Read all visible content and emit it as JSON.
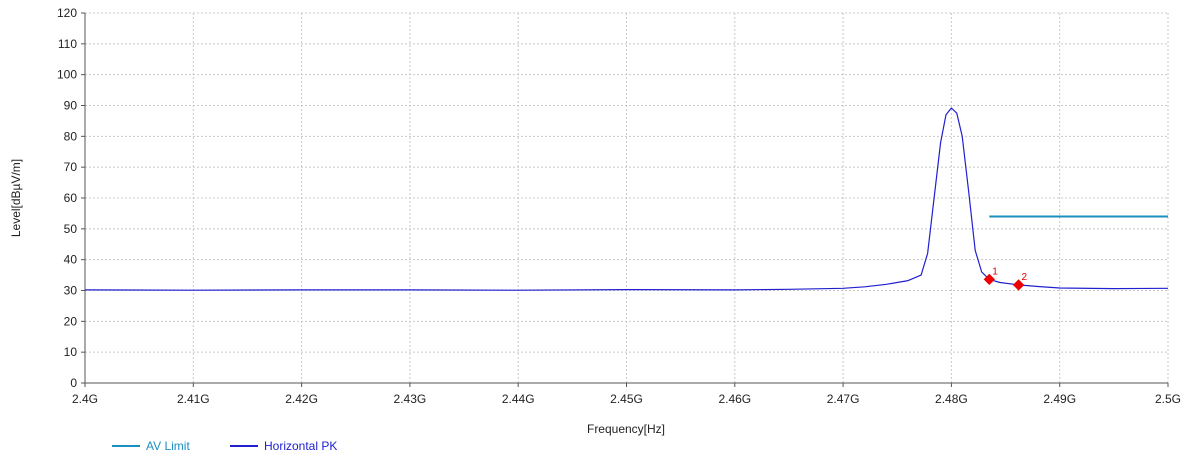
{
  "chart_data": {
    "type": "line",
    "xlabel": "Frequency[Hz]",
    "ylabel": "Level[dBµV/m]",
    "xlim": [
      2.4,
      2.5
    ],
    "ylim": [
      0,
      120
    ],
    "x_ticks": [
      2.4,
      2.41,
      2.42,
      2.43,
      2.44,
      2.45,
      2.46,
      2.47,
      2.48,
      2.49,
      2.5
    ],
    "x_tick_labels": [
      "2.4G",
      "2.41G",
      "2.42G",
      "2.43G",
      "2.44G",
      "2.45G",
      "2.46G",
      "2.47G",
      "2.48G",
      "2.49G",
      "2.5G"
    ],
    "y_ticks": [
      0,
      10,
      20,
      30,
      40,
      50,
      60,
      70,
      80,
      90,
      100,
      110,
      120
    ],
    "y_tick_labels": [
      "0",
      "10",
      "20",
      "30",
      "40",
      "50",
      "60",
      "70",
      "80",
      "90",
      "100",
      "110",
      "120"
    ],
    "grid": true,
    "legend_position": "bottom-left",
    "series": [
      {
        "name": "AV Limit",
        "color": "#1a8fc0",
        "x": [
          2.4835,
          2.5
        ],
        "y": [
          54,
          54
        ]
      },
      {
        "name": "Horizontal PK",
        "color": "#2020d0",
        "x": [
          2.4,
          2.41,
          2.42,
          2.43,
          2.44,
          2.45,
          2.46,
          2.465,
          2.47,
          2.472,
          2.474,
          2.476,
          2.4772,
          2.4778,
          2.4784,
          2.479,
          2.4795,
          2.48,
          2.4805,
          2.481,
          2.4816,
          2.4822,
          2.4828,
          2.4835,
          2.4845,
          2.4862,
          2.488,
          2.49,
          2.495,
          2.5
        ],
        "y": [
          30.2,
          30.1,
          30.2,
          30.2,
          30.1,
          30.3,
          30.2,
          30.4,
          30.7,
          31.2,
          32.0,
          33.2,
          35.0,
          42.0,
          60.0,
          78.0,
          87.0,
          89.2,
          87.5,
          80.0,
          62.0,
          43.0,
          36.0,
          33.6,
          32.6,
          31.8,
          31.3,
          30.8,
          30.6,
          30.7
        ]
      }
    ],
    "markers": [
      {
        "label": "1",
        "x": 2.4835,
        "y": 33.6
      },
      {
        "label": "2",
        "x": 2.4862,
        "y": 31.8
      }
    ]
  }
}
